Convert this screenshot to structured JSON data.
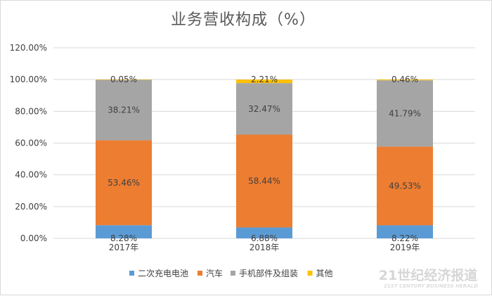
{
  "chart_data": {
    "type": "bar",
    "stacked": true,
    "title": "业务营收构成（%）",
    "categories": [
      "2017年",
      "2018年",
      "2019年"
    ],
    "series": [
      {
        "name": "二次充电电池",
        "color": "#5b9bd5",
        "values": [
          8.28,
          6.88,
          8.22
        ],
        "labels": [
          "8.28%",
          "6.88%",
          "8.22%"
        ]
      },
      {
        "name": "汽车",
        "color": "#ed7d31",
        "values": [
          53.46,
          58.44,
          49.53
        ],
        "labels": [
          "53.46%",
          "58.44%",
          "49.53%"
        ]
      },
      {
        "name": "手机部件及组装",
        "color": "#a5a5a5",
        "values": [
          38.21,
          32.47,
          41.79
        ],
        "labels": [
          "38.21%",
          "32.47%",
          "41.79%"
        ]
      },
      {
        "name": "其他",
        "color": "#ffc000",
        "values": [
          0.05,
          2.21,
          0.46
        ],
        "labels": [
          "0.05%",
          "2.21%",
          "0.46%"
        ]
      }
    ],
    "yticks": [
      "0.00%",
      "20.00%",
      "40.00%",
      "60.00%",
      "80.00%",
      "100.00%",
      "120.00%"
    ],
    "ylim": [
      0,
      120
    ],
    "grid": true,
    "legend_position": "bottom"
  },
  "watermark": {
    "main": "21世纪经济报道",
    "sub": "21ST CENTURY BUSINESS HERALD"
  }
}
